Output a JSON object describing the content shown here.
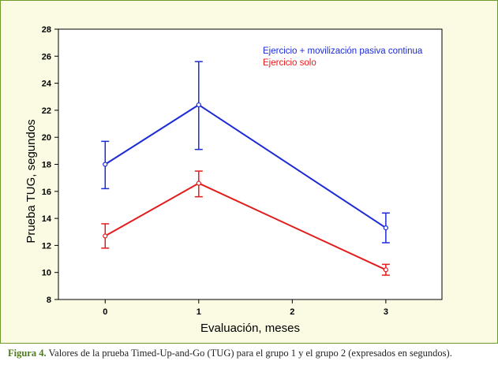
{
  "chart_data": {
    "type": "line",
    "x": [
      0,
      1,
      2,
      3
    ],
    "xticks": [
      "0",
      "1",
      "2",
      "3"
    ],
    "xlim": [
      -0.5,
      3.6
    ],
    "yticks": [
      "8",
      "10",
      "12",
      "14",
      "16",
      "18",
      "20",
      "22",
      "24",
      "26",
      "28"
    ],
    "ylim": [
      8,
      28
    ],
    "xlabel": "Evaluación, meses",
    "ylabel": "Prueba TUG, segundos",
    "grid": false,
    "legend_position": "top-right",
    "series": [
      {
        "name": "Ejercicio + movilización pasiva continua",
        "color": "#1c2bd6",
        "x": [
          0,
          1,
          3
        ],
        "values": [
          18.0,
          22.4,
          13.3
        ],
        "err_low": [
          16.2,
          19.1,
          12.2
        ],
        "err_high": [
          19.7,
          25.6,
          14.4
        ]
      },
      {
        "name": "Ejercicio solo",
        "color": "#e31c1c",
        "x": [
          0,
          1,
          3
        ],
        "values": [
          12.7,
          16.6,
          10.2
        ],
        "err_low": [
          11.8,
          15.6,
          9.8
        ],
        "err_high": [
          13.6,
          17.5,
          10.6
        ]
      }
    ]
  },
  "caption": {
    "label": "Figura 4.",
    "text": " Valores de la prueba Timed-Up-and-Go (TUG) para el grupo 1 y el grupo 2 (expresados en segundos)."
  },
  "colors": {
    "frame_bg": "#fbfbe3",
    "frame_border": "#6e9a2e",
    "caption_label": "#4d7a1a"
  }
}
